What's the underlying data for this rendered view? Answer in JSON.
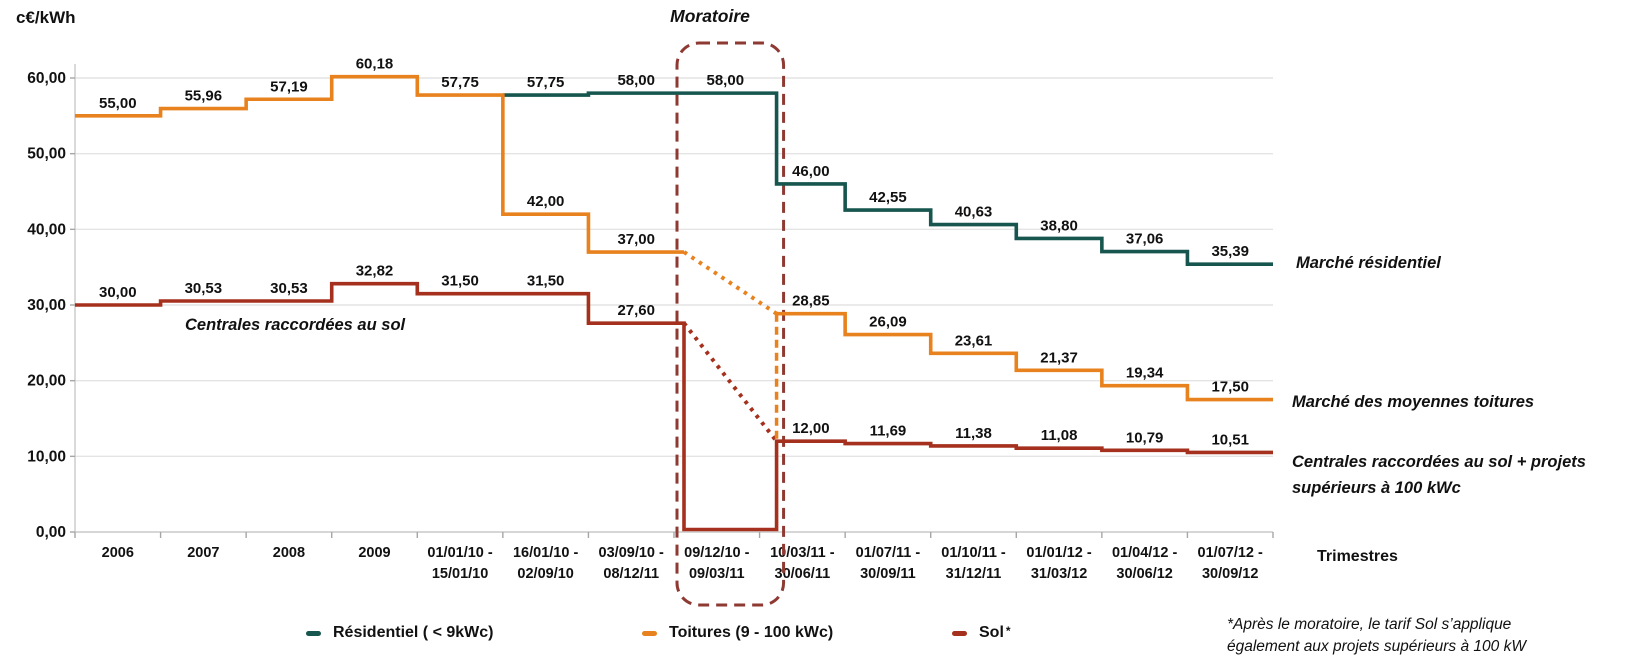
{
  "chart_data": {
    "type": "line",
    "subtype": "step",
    "title_unit": "c€/kWh",
    "x_axis_title": "Trimestres",
    "ylim": [
      0,
      60
    ],
    "grid": true,
    "legend_position": "bottom",
    "yticks": [
      {
        "v": 0,
        "label": "0,00"
      },
      {
        "v": 10,
        "label": "10,00"
      },
      {
        "v": 20,
        "label": "20,00"
      },
      {
        "v": 30,
        "label": "30,00"
      },
      {
        "v": 40,
        "label": "40,00"
      },
      {
        "v": 50,
        "label": "50,00"
      },
      {
        "v": 60,
        "label": "60,00"
      }
    ],
    "categories": [
      "2006",
      "2007",
      "2008",
      "2009",
      "01/01/10 -\n15/01/10",
      "16/01/10 -\n02/09/10",
      "03/09/10 -\n08/12/11",
      "09/12/10 -\n09/03/11",
      "10/03/11 -\n30/06/11",
      "01/07/11 -\n30/09/11",
      "01/10/11 -\n31/12/11",
      "01/01/12 -\n31/03/12",
      "01/04/12 -\n30/06/12",
      "01/07/12 -\n30/09/12"
    ],
    "moratorium": {
      "label": "Moratoire",
      "category_index": 7,
      "color": "#8E3A33"
    },
    "series": [
      {
        "id": "residentiel",
        "name": "Résidentiel ( < 9kWc)",
        "color": "#17564E",
        "values": [
          null,
          null,
          null,
          null,
          null,
          57.75,
          58.0,
          58.0,
          46.0,
          42.55,
          40.63,
          38.8,
          37.06,
          35.39
        ],
        "labels": [
          null,
          null,
          null,
          null,
          null,
          "57,75",
          "58,00",
          "58,00",
          "46,00",
          "42,55",
          "40,63",
          "38,80",
          "37,06",
          "35,39"
        ]
      },
      {
        "id": "toitures",
        "name": "Toitures (9 - 100 kWc)",
        "color": "#E8821E",
        "values": [
          55.0,
          55.96,
          57.19,
          60.18,
          57.75,
          42.0,
          37.0,
          null,
          28.85,
          26.09,
          23.61,
          21.37,
          19.34,
          17.5
        ],
        "labels": [
          "55,00",
          "55,96",
          "57,19",
          "60,18",
          "57,75",
          "42,00",
          "37,00",
          null,
          "28,85",
          "26,09",
          "23,61",
          "21,37",
          "19,34",
          "17,50"
        ]
      },
      {
        "id": "sol",
        "name": "Sol",
        "footnote_marker": "*",
        "color": "#A5301D",
        "values": [
          30.0,
          30.53,
          30.53,
          32.82,
          31.5,
          31.5,
          27.6,
          0,
          12.0,
          11.69,
          11.38,
          11.08,
          10.79,
          10.51
        ],
        "labels": [
          "30,00",
          "30,53",
          "30,53",
          "32,82",
          "31,50",
          "31,50",
          "27,60",
          null,
          "12,00",
          "11,69",
          "11,38",
          "11,08",
          "10,79",
          "10,51"
        ]
      }
    ],
    "transitions": [
      {
        "series": "toitures",
        "from": 37.0,
        "to": 28.85,
        "style": "dotted"
      },
      {
        "series": "sol",
        "from": 27.6,
        "to": 12.0,
        "style": "dotted"
      },
      {
        "series": "toitures",
        "from": 28.85,
        "to": 12.0,
        "style": "dashed-vertical"
      }
    ]
  },
  "annotations": {
    "sol_pre": "Centrales raccordées au sol",
    "residentiel": "Marché résidentiel",
    "toitures": "Marché des moyennes toitures",
    "sol_post": "Centrales raccordées au sol + projets\nsupérieurs à 100 kWc"
  },
  "footnote": "*Après le moratoire, le tarif Sol s’applique\négalement aux projets supérieurs à 100 kW"
}
